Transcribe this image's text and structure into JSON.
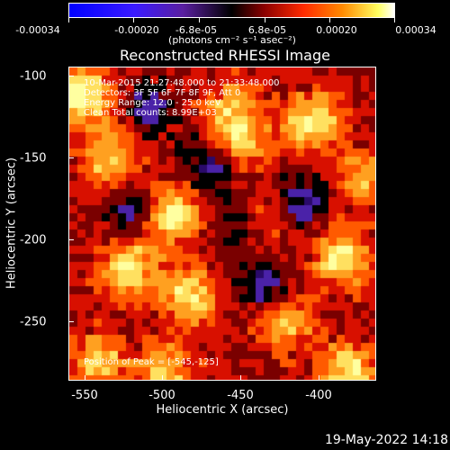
{
  "colorbar": {
    "tick_labels": [
      "-0.00034",
      "-0.00020",
      "-6.8e-05",
      "6.8e-05",
      "0.00020",
      "0.00034"
    ],
    "units": "(photons cm⁻² s⁻¹ asec⁻²)"
  },
  "title": "Reconstructed RHESSI Image",
  "info": {
    "time": "10-Mar-2015 21:27:48.000 to 21:33:48.000",
    "detectors": "Detectors: 3F 5F 6F 7F 8F 9F, Att 0",
    "energy": "Energy Range: 12.0 - 25.0 keV",
    "method": "Clean    Total counts: 8.99E+03",
    "peak": "Position of Peak = [-545,-125]"
  },
  "chart_data": {
    "type": "heatmap",
    "xlabel": "Heliocentric X (arcsec)",
    "ylabel": "Heliocentric Y (arcsec)",
    "x_ticks": [
      "-550",
      "-500",
      "-450",
      "-400"
    ],
    "y_ticks": [
      "-100",
      "-150",
      "-200",
      "-250"
    ],
    "xlim": [
      -562,
      -366
    ],
    "ylim": [
      -286,
      -95
    ],
    "colormap": [
      "#2a0a6a",
      "#4a22a8",
      "#000000",
      "#7a0000",
      "#d81000",
      "#ff5a00",
      "#ffa020",
      "#ffe060",
      "#ffffa0"
    ]
  },
  "timestamp": "19-May-2022 14:18"
}
